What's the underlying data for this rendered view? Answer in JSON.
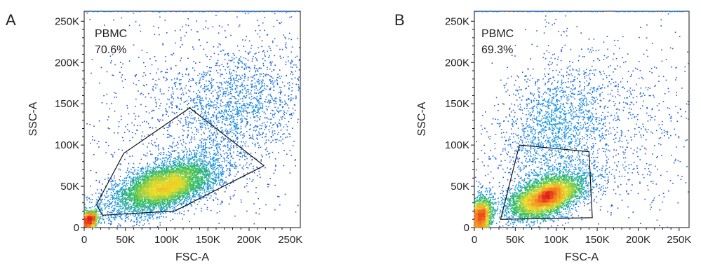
{
  "chart_data": [
    {
      "type": "scatter",
      "panel_label": "A",
      "xlabel": "FSC-A",
      "ylabel": "SSC-A",
      "xlim": [
        0,
        262144
      ],
      "ylim": [
        0,
        262144
      ],
      "x_ticks": [
        0,
        50000,
        100000,
        150000,
        200000,
        250000
      ],
      "x_tick_labels": [
        "0",
        "50K",
        "100K",
        "150K",
        "200K",
        "250K"
      ],
      "y_ticks": [
        0,
        50000,
        100000,
        150000,
        200000,
        250000
      ],
      "y_tick_labels": [
        "0",
        "50K",
        "100K",
        "150K",
        "200K",
        "250K"
      ],
      "gate": {
        "name": "PBMC",
        "percent": "70.6%",
        "polygon": [
          [
            15000,
            28000
          ],
          [
            48000,
            90000
          ],
          [
            128000,
            145000
          ],
          [
            218000,
            75000
          ],
          [
            110000,
            20000
          ],
          [
            22000,
            15000
          ]
        ]
      },
      "density": {
        "coloring": "pseudocolor density (blue → green → yellow → red)",
        "clusters": [
          {
            "cx": 97000,
            "cy": 50000,
            "sx": 33000,
            "sy": 17000,
            "rho": 0.55,
            "weight": 0.62
          },
          {
            "cx": 7000,
            "cy": 9000,
            "sx": 5000,
            "sy": 6000,
            "rho": 0.3,
            "weight": 0.1
          },
          {
            "cx": 185000,
            "cy": 145000,
            "sx": 45000,
            "sy": 38000,
            "rho": 0.3,
            "weight": 0.18
          },
          {
            "cx": 130000,
            "cy": 130000,
            "sx": 75000,
            "sy": 70000,
            "rho": 0.0,
            "weight": 0.1
          }
        ]
      }
    },
    {
      "type": "scatter",
      "panel_label": "B",
      "xlabel": "FSC-A",
      "ylabel": "SSC-A",
      "xlim": [
        0,
        262144
      ],
      "ylim": [
        0,
        262144
      ],
      "x_ticks": [
        0,
        50000,
        100000,
        150000,
        200000,
        250000
      ],
      "x_tick_labels": [
        "0",
        "50K",
        "100K",
        "150K",
        "200K",
        "250K"
      ],
      "y_ticks": [
        0,
        50000,
        100000,
        150000,
        200000,
        250000
      ],
      "y_tick_labels": [
        "0",
        "50K",
        "100K",
        "150K",
        "200K",
        "250K"
      ],
      "gate": {
        "name": "PBMC",
        "percent": "69.3%",
        "polygon": [
          [
            32000,
            10000
          ],
          [
            55000,
            100000
          ],
          [
            140000,
            92000
          ],
          [
            144000,
            12000
          ]
        ]
      },
      "density": {
        "coloring": "pseudocolor density (blue → green → yellow → red)",
        "clusters": [
          {
            "cx": 88000,
            "cy": 37000,
            "sx": 24000,
            "sy": 14000,
            "rho": 0.5,
            "weight": 0.52
          },
          {
            "cx": 9000,
            "cy": 14000,
            "sx": 7000,
            "sy": 13000,
            "rho": 0.2,
            "weight": 0.18
          },
          {
            "cx": 95000,
            "cy": 115000,
            "sx": 35000,
            "sy": 40000,
            "rho": 0.2,
            "weight": 0.18
          },
          {
            "cx": 160000,
            "cy": 120000,
            "sx": 60000,
            "sy": 60000,
            "rho": 0.0,
            "weight": 0.12
          }
        ]
      }
    }
  ]
}
